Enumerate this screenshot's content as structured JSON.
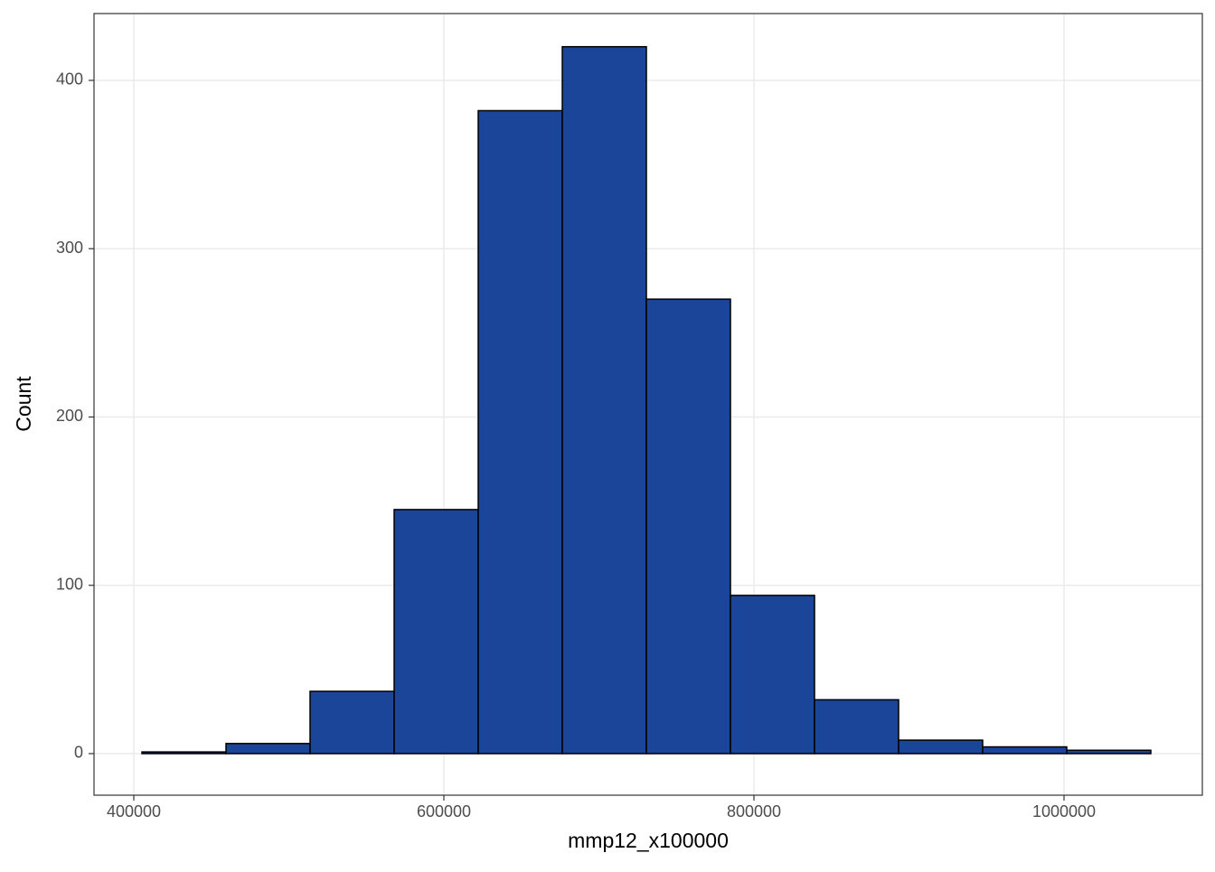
{
  "chart_data": {
    "type": "histogram",
    "x_label": "mmp12_x100000",
    "y_label": "Count",
    "bins": [
      405250,
      459480,
      513700,
      567930,
      622160,
      676390,
      730610,
      784840,
      839070,
      893300,
      947520,
      1001750,
      1055980
    ],
    "values": [
      1,
      6,
      37,
      145,
      382,
      420,
      270,
      94,
      32,
      8,
      4,
      2
    ],
    "color": "#1a4599",
    "xlim": [
      374344,
      1089213
    ],
    "xticks": [
      400000,
      600000,
      800000,
      1000000
    ],
    "ylim": [
      -24.7,
      439.7
    ],
    "yticks": [
      0,
      100,
      200,
      300,
      400
    ],
    "grid": true
  }
}
